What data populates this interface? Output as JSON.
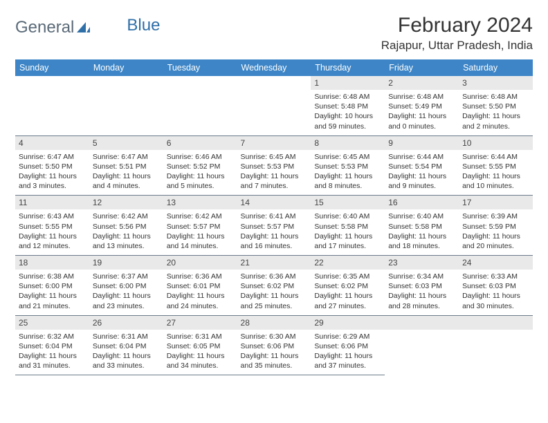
{
  "logo": {
    "text1": "General",
    "text2": "Blue"
  },
  "title": "February 2024",
  "location": "Rajapur, Uttar Pradesh, India",
  "header_bg": "#3d85c6",
  "header_fg": "#ffffff",
  "daynum_bg": "#e9e9e9",
  "divider_color": "#6a7a8a",
  "days": [
    "Sunday",
    "Monday",
    "Tuesday",
    "Wednesday",
    "Thursday",
    "Friday",
    "Saturday"
  ],
  "weeks": [
    [
      null,
      null,
      null,
      null,
      {
        "n": "1",
        "sr": "6:48 AM",
        "ss": "5:48 PM",
        "dh": "10",
        "dm": "59"
      },
      {
        "n": "2",
        "sr": "6:48 AM",
        "ss": "5:49 PM",
        "dh": "11",
        "dm": "0"
      },
      {
        "n": "3",
        "sr": "6:48 AM",
        "ss": "5:50 PM",
        "dh": "11",
        "dm": "2"
      }
    ],
    [
      {
        "n": "4",
        "sr": "6:47 AM",
        "ss": "5:50 PM",
        "dh": "11",
        "dm": "3"
      },
      {
        "n": "5",
        "sr": "6:47 AM",
        "ss": "5:51 PM",
        "dh": "11",
        "dm": "4"
      },
      {
        "n": "6",
        "sr": "6:46 AM",
        "ss": "5:52 PM",
        "dh": "11",
        "dm": "5"
      },
      {
        "n": "7",
        "sr": "6:45 AM",
        "ss": "5:53 PM",
        "dh": "11",
        "dm": "7"
      },
      {
        "n": "8",
        "sr": "6:45 AM",
        "ss": "5:53 PM",
        "dh": "11",
        "dm": "8"
      },
      {
        "n": "9",
        "sr": "6:44 AM",
        "ss": "5:54 PM",
        "dh": "11",
        "dm": "9"
      },
      {
        "n": "10",
        "sr": "6:44 AM",
        "ss": "5:55 PM",
        "dh": "11",
        "dm": "10"
      }
    ],
    [
      {
        "n": "11",
        "sr": "6:43 AM",
        "ss": "5:55 PM",
        "dh": "11",
        "dm": "12"
      },
      {
        "n": "12",
        "sr": "6:42 AM",
        "ss": "5:56 PM",
        "dh": "11",
        "dm": "13"
      },
      {
        "n": "13",
        "sr": "6:42 AM",
        "ss": "5:57 PM",
        "dh": "11",
        "dm": "14"
      },
      {
        "n": "14",
        "sr": "6:41 AM",
        "ss": "5:57 PM",
        "dh": "11",
        "dm": "16"
      },
      {
        "n": "15",
        "sr": "6:40 AM",
        "ss": "5:58 PM",
        "dh": "11",
        "dm": "17"
      },
      {
        "n": "16",
        "sr": "6:40 AM",
        "ss": "5:58 PM",
        "dh": "11",
        "dm": "18"
      },
      {
        "n": "17",
        "sr": "6:39 AM",
        "ss": "5:59 PM",
        "dh": "11",
        "dm": "20"
      }
    ],
    [
      {
        "n": "18",
        "sr": "6:38 AM",
        "ss": "6:00 PM",
        "dh": "11",
        "dm": "21"
      },
      {
        "n": "19",
        "sr": "6:37 AM",
        "ss": "6:00 PM",
        "dh": "11",
        "dm": "23"
      },
      {
        "n": "20",
        "sr": "6:36 AM",
        "ss": "6:01 PM",
        "dh": "11",
        "dm": "24"
      },
      {
        "n": "21",
        "sr": "6:36 AM",
        "ss": "6:02 PM",
        "dh": "11",
        "dm": "25"
      },
      {
        "n": "22",
        "sr": "6:35 AM",
        "ss": "6:02 PM",
        "dh": "11",
        "dm": "27"
      },
      {
        "n": "23",
        "sr": "6:34 AM",
        "ss": "6:03 PM",
        "dh": "11",
        "dm": "28"
      },
      {
        "n": "24",
        "sr": "6:33 AM",
        "ss": "6:03 PM",
        "dh": "11",
        "dm": "30"
      }
    ],
    [
      {
        "n": "25",
        "sr": "6:32 AM",
        "ss": "6:04 PM",
        "dh": "11",
        "dm": "31"
      },
      {
        "n": "26",
        "sr": "6:31 AM",
        "ss": "6:04 PM",
        "dh": "11",
        "dm": "33"
      },
      {
        "n": "27",
        "sr": "6:31 AM",
        "ss": "6:05 PM",
        "dh": "11",
        "dm": "34"
      },
      {
        "n": "28",
        "sr": "6:30 AM",
        "ss": "6:06 PM",
        "dh": "11",
        "dm": "35"
      },
      {
        "n": "29",
        "sr": "6:29 AM",
        "ss": "6:06 PM",
        "dh": "11",
        "dm": "37"
      },
      null,
      null
    ]
  ]
}
